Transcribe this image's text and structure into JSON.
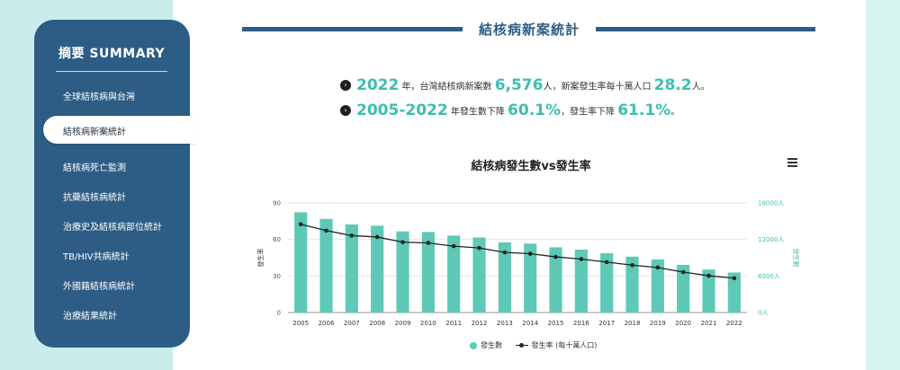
{
  "sidebar": {
    "title": "摘要 SUMMARY",
    "items": [
      {
        "label": "全球結核病與台灣",
        "active": false
      },
      {
        "label": "結核病新案統計",
        "active": true
      },
      {
        "label": "結核病死亡監測",
        "active": false
      },
      {
        "label": "抗藥結核病統計",
        "active": false
      },
      {
        "label": "治療史及結核病部位統計",
        "active": false
      },
      {
        "label": "TB/HIV共病統計",
        "active": false
      },
      {
        "label": "外國籍結核病統計",
        "active": false
      },
      {
        "label": "治療結果統計",
        "active": false
      }
    ]
  },
  "header": {
    "title": "結核病新案統計"
  },
  "summary": {
    "line1": {
      "year": "2022",
      "t1": " 年，台灣結核病新案數 ",
      "cases": "6,576",
      "t2": "人，新案發生率每十萬人口 ",
      "rate": "28.2",
      "t3": "人。"
    },
    "line2": {
      "range": "2005-2022",
      "t1": " 年發生數下降 ",
      "case_drop": "60.1%",
      "t2": "，發生率下降 ",
      "rate_drop": "61.1%",
      "t3": "。"
    }
  },
  "colors": {
    "bar": "#5ec9b6",
    "line": "#222222",
    "accent": "#3cbfae",
    "brand": "#2d5d85"
  },
  "chart_data": {
    "type": "bar",
    "title": "結核病發生數vs發生率",
    "categories": [
      "2005",
      "2006",
      "2007",
      "2008",
      "2009",
      "2010",
      "2011",
      "2012",
      "2013",
      "2014",
      "2015",
      "2016",
      "2017",
      "2018",
      "2019",
      "2020",
      "2021",
      "2022"
    ],
    "ylabel_left": "發生率",
    "ylabel_right": "發生數",
    "yticks_left": [
      "0",
      "30",
      "60",
      "90"
    ],
    "yticks_right": [
      "0人",
      "6000人",
      "12000人",
      "18000人"
    ],
    "ylim_left": [
      0,
      90
    ],
    "ylim_right": [
      0,
      18000
    ],
    "grid": true,
    "legend_position": "bottom",
    "series": [
      {
        "name": "發生數",
        "type": "bar",
        "axis": "right",
        "values": [
          16472,
          15378,
          14480,
          14265,
          13336,
          13237,
          12634,
          12338,
          11528,
          11326,
          10711,
          10328,
          9759,
          9179,
          8732,
          7823,
          7062,
          6576
        ]
      },
      {
        "name": "發生率 (每十萬人口)",
        "type": "line",
        "axis": "left",
        "values": [
          72.5,
          67.3,
          63.2,
          62.0,
          57.8,
          57.2,
          54.5,
          53.0,
          49.4,
          48.3,
          45.7,
          43.9,
          41.4,
          38.9,
          37.0,
          33.2,
          30.2,
          28.2
        ]
      }
    ]
  }
}
